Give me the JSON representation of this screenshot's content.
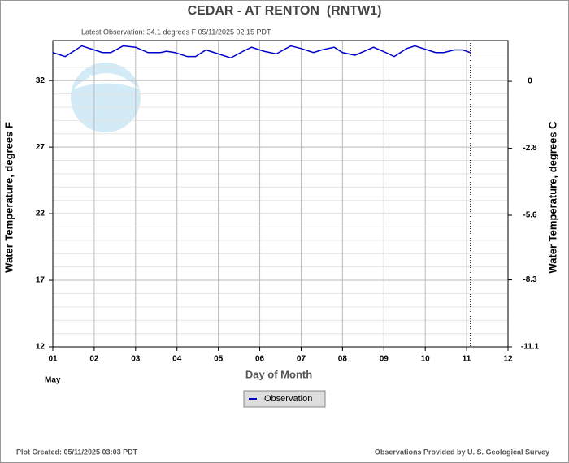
{
  "chart_data": {
    "type": "line",
    "title": "CEDAR - AT RENTON  (RNTW1)",
    "subtitle": "Latest Observation: 34.1 degrees F 05/11/2025 02:15 PDT",
    "xlabel": "Day of Month",
    "xlabel_month": "May",
    "ylabel": "Water Temperature, degrees F",
    "y2label": "Water Temperature, degrees C",
    "x": [
      1.0,
      1.3,
      1.5,
      1.7,
      2.0,
      2.2,
      2.4,
      2.7,
      3.0,
      3.3,
      3.6,
      3.75,
      3.95,
      4.25,
      4.45,
      4.7,
      5.0,
      5.3,
      5.6,
      5.8,
      6.1,
      6.4,
      6.75,
      7.0,
      7.3,
      7.5,
      7.8,
      8.0,
      8.3,
      8.45,
      8.75,
      9.05,
      9.25,
      9.55,
      9.75,
      10.05,
      10.25,
      10.45,
      10.7,
      10.9,
      11.09
    ],
    "series": [
      {
        "name": "Observation",
        "color": "#0000cc",
        "values": [
          34.1,
          33.8,
          34.2,
          34.6,
          34.3,
          34.1,
          34.1,
          34.6,
          34.5,
          34.1,
          34.1,
          34.2,
          34.1,
          33.8,
          33.8,
          34.3,
          34.0,
          33.7,
          34.2,
          34.5,
          34.2,
          34.0,
          34.6,
          34.4,
          34.1,
          34.3,
          34.5,
          34.1,
          33.9,
          34.1,
          34.5,
          34.1,
          33.8,
          34.4,
          34.6,
          34.3,
          34.1,
          34.1,
          34.3,
          34.3,
          34.1
        ]
      }
    ],
    "latest_x": 11.09,
    "xlim": [
      1,
      12
    ],
    "xticks": [
      {
        "value": 1,
        "label": "01"
      },
      {
        "value": 2,
        "label": "02"
      },
      {
        "value": 3,
        "label": "03"
      },
      {
        "value": 4,
        "label": "04"
      },
      {
        "value": 5,
        "label": "05"
      },
      {
        "value": 6,
        "label": "06"
      },
      {
        "value": 7,
        "label": "07"
      },
      {
        "value": 8,
        "label": "08"
      },
      {
        "value": 9,
        "label": "09"
      },
      {
        "value": 10,
        "label": "10"
      },
      {
        "value": 11,
        "label": "11"
      },
      {
        "value": 12,
        "label": "12"
      }
    ],
    "ylim": [
      12,
      35
    ],
    "yticks": [
      12,
      17,
      22,
      27,
      32
    ],
    "y_minor_step": 1,
    "y2lim": [
      -11.1,
      1.7
    ],
    "y2ticks": [
      -11.1,
      -8.3,
      -5.6,
      -2.8,
      0
    ],
    "grid": true,
    "footer_left": "Plot Created: 05/11/2025 03:03 PDT",
    "footer_right": "Observations Provided by U. S. Geological Survey"
  }
}
